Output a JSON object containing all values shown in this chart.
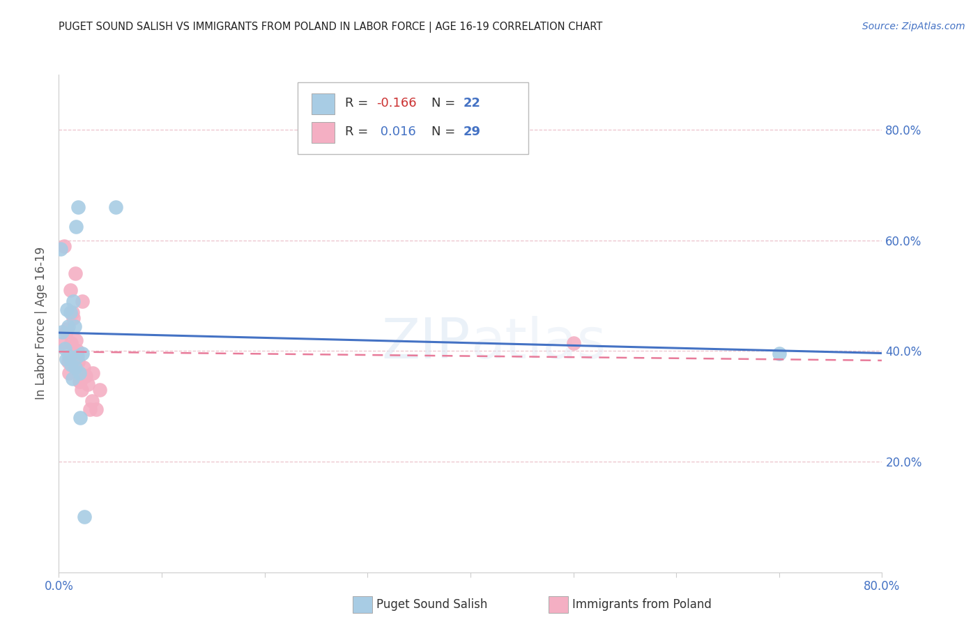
{
  "title": "PUGET SOUND SALISH VS IMMIGRANTS FROM POLAND IN LABOR FORCE | AGE 16-19 CORRELATION CHART",
  "source": "Source: ZipAtlas.com",
  "ylabel": "In Labor Force | Age 16-19",
  "xlim": [
    0.0,
    0.8
  ],
  "ylim": [
    0.0,
    0.9
  ],
  "yticks": [
    0.2,
    0.4,
    0.6,
    0.8
  ],
  "ytick_labels": [
    "20.0%",
    "40.0%",
    "60.0%",
    "80.0%"
  ],
  "xticks": [
    0.0,
    0.1,
    0.2,
    0.3,
    0.4,
    0.5,
    0.6,
    0.7,
    0.8
  ],
  "xtick_labels": [
    "0.0%",
    "",
    "",
    "",
    "",
    "",
    "",
    "",
    "80.0%"
  ],
  "blue_color": "#a8cce4",
  "pink_color": "#f4afc3",
  "blue_line_color": "#4472c4",
  "pink_line_color": "#e87b9a",
  "watermark": "ZIPatlas",
  "legend_R_blue": "-0.166",
  "legend_N_blue": "22",
  "legend_R_pink": "0.016",
  "legend_N_pink": "29",
  "blue_scatter_x": [
    0.002,
    0.003,
    0.006,
    0.007,
    0.008,
    0.009,
    0.01,
    0.011,
    0.012,
    0.013,
    0.014,
    0.015,
    0.016,
    0.017,
    0.018,
    0.019,
    0.02,
    0.021,
    0.023,
    0.025,
    0.055,
    0.7
  ],
  "blue_scatter_y": [
    0.585,
    0.435,
    0.405,
    0.385,
    0.475,
    0.445,
    0.39,
    0.47,
    0.375,
    0.35,
    0.49,
    0.445,
    0.37,
    0.625,
    0.39,
    0.66,
    0.36,
    0.28,
    0.395,
    0.1,
    0.66,
    0.395
  ],
  "pink_scatter_x": [
    0.003,
    0.005,
    0.007,
    0.008,
    0.009,
    0.01,
    0.011,
    0.012,
    0.013,
    0.014,
    0.015,
    0.016,
    0.017,
    0.018,
    0.019,
    0.02,
    0.02,
    0.021,
    0.022,
    0.023,
    0.024,
    0.026,
    0.028,
    0.03,
    0.032,
    0.033,
    0.036,
    0.04,
    0.5
  ],
  "pink_scatter_y": [
    0.415,
    0.59,
    0.435,
    0.44,
    0.38,
    0.36,
    0.51,
    0.415,
    0.47,
    0.46,
    0.395,
    0.54,
    0.42,
    0.4,
    0.38,
    0.36,
    0.345,
    0.345,
    0.33,
    0.49,
    0.37,
    0.355,
    0.34,
    0.295,
    0.31,
    0.36,
    0.295,
    0.33,
    0.415
  ]
}
